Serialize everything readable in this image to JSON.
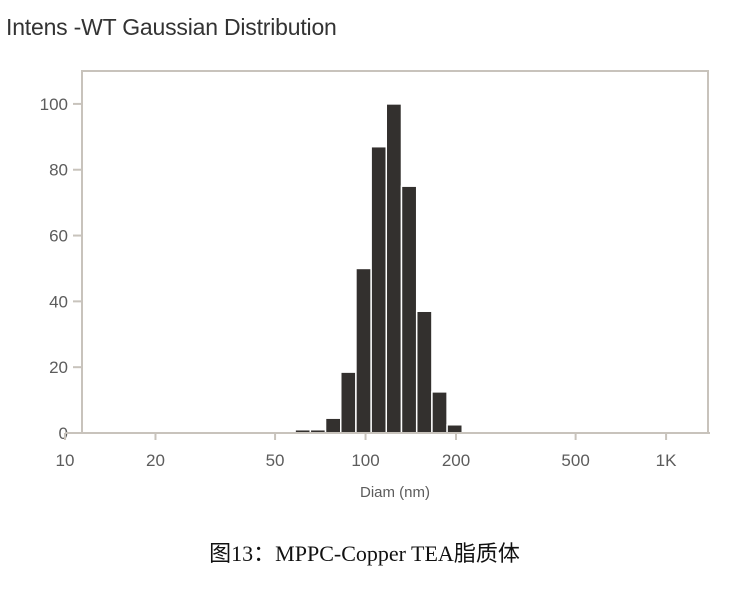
{
  "caption": "图13：MPPC-Copper TEA脂质体",
  "colors": {
    "bar_fill": "#33302e",
    "bar_stroke": "#ffffff",
    "frame": "#c8c3bc",
    "axis_text": "#5c5c5c",
    "title_text": "#333333"
  },
  "chart_data": {
    "type": "bar",
    "title": "Intens -WT Gaussian Distribution",
    "xlabel": "Diam (nm)",
    "ylabel": "",
    "x_scale": "log",
    "xlim": [
      10,
      1400
    ],
    "ylim": [
      0,
      110
    ],
    "grid": false,
    "xticks": [
      {
        "value": 10,
        "label": "10"
      },
      {
        "value": 20,
        "label": "20"
      },
      {
        "value": 50,
        "label": "50"
      },
      {
        "value": 100,
        "label": "100"
      },
      {
        "value": 200,
        "label": "200"
      },
      {
        "value": 500,
        "label": "500"
      },
      {
        "value": 1000,
        "label": "1K"
      }
    ],
    "yticks": [
      {
        "value": 0,
        "label": "0"
      },
      {
        "value": 20,
        "label": "20"
      },
      {
        "value": 40,
        "label": "40"
      },
      {
        "value": 60,
        "label": "60"
      },
      {
        "value": 80,
        "label": "80"
      },
      {
        "value": 100,
        "label": "100"
      }
    ],
    "bins": [
      {
        "x_start": 58.3,
        "x_end": 65.5,
        "value": 1
      },
      {
        "x_start": 65.5,
        "x_end": 73.6,
        "value": 1
      },
      {
        "x_start": 73.6,
        "x_end": 82.7,
        "value": 4.5
      },
      {
        "x_start": 82.7,
        "x_end": 92.9,
        "value": 18.5
      },
      {
        "x_start": 92.9,
        "x_end": 104.4,
        "value": 50
      },
      {
        "x_start": 104.4,
        "x_end": 117.2,
        "value": 87
      },
      {
        "x_start": 117.2,
        "x_end": 131.7,
        "value": 100
      },
      {
        "x_start": 131.7,
        "x_end": 148,
        "value": 75
      },
      {
        "x_start": 148,
        "x_end": 166.3,
        "value": 37
      },
      {
        "x_start": 166.3,
        "x_end": 186.8,
        "value": 12.5
      },
      {
        "x_start": 186.8,
        "x_end": 209.8,
        "value": 2.5
      }
    ]
  }
}
